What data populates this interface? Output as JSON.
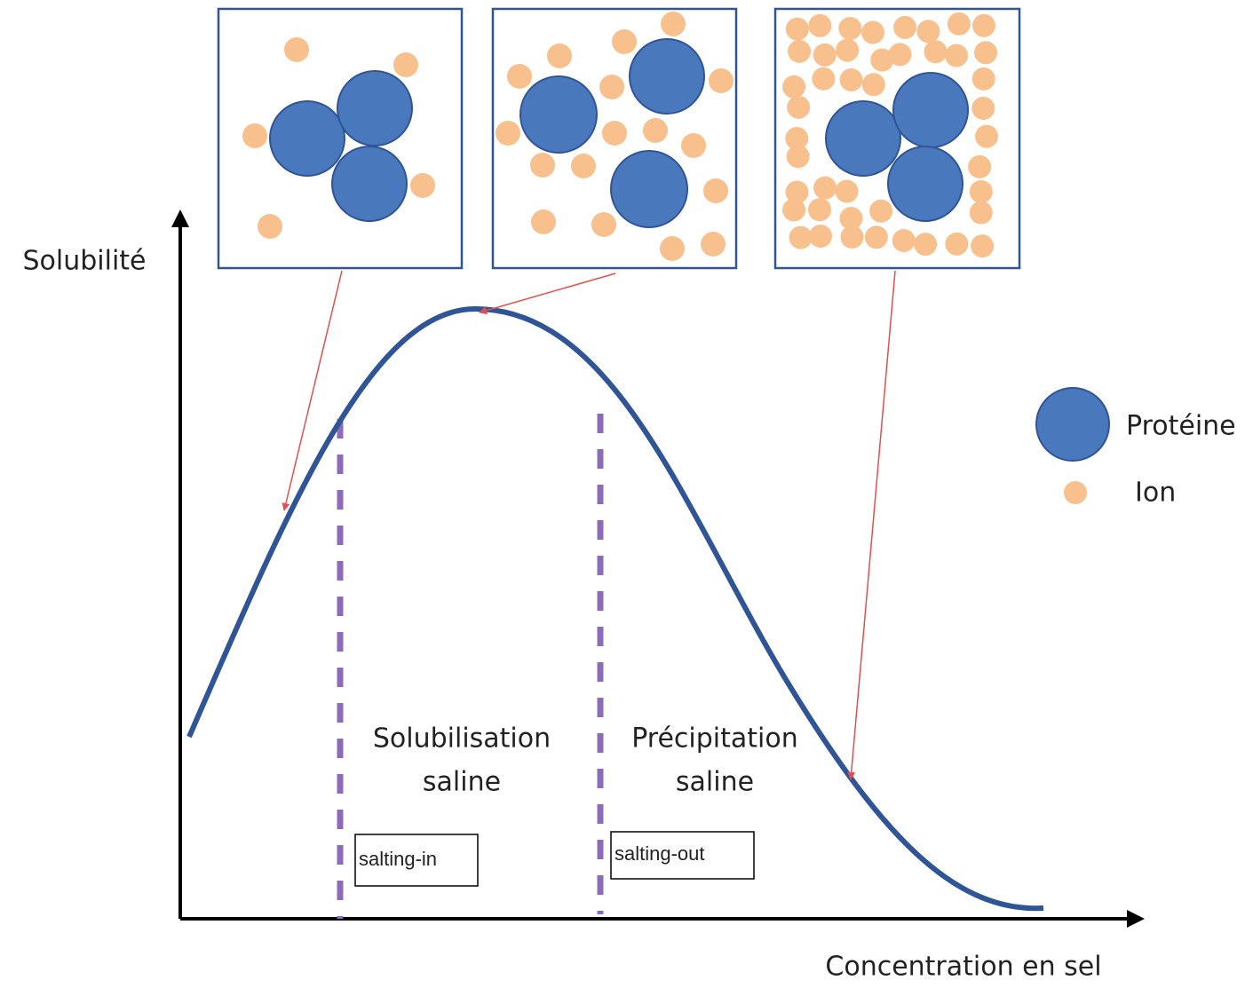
{
  "axes": {
    "y_label": "Solubilité",
    "x_label": "Concentration en sel"
  },
  "regions": [
    {
      "lines": [
        "Solubilisation",
        "saline"
      ],
      "tag": "salting-in"
    },
    {
      "lines": [
        "Précipitation",
        "saline"
      ],
      "tag": "salting-out"
    }
  ],
  "legend": {
    "protein": "Protéine",
    "ion": "Ion"
  }
}
